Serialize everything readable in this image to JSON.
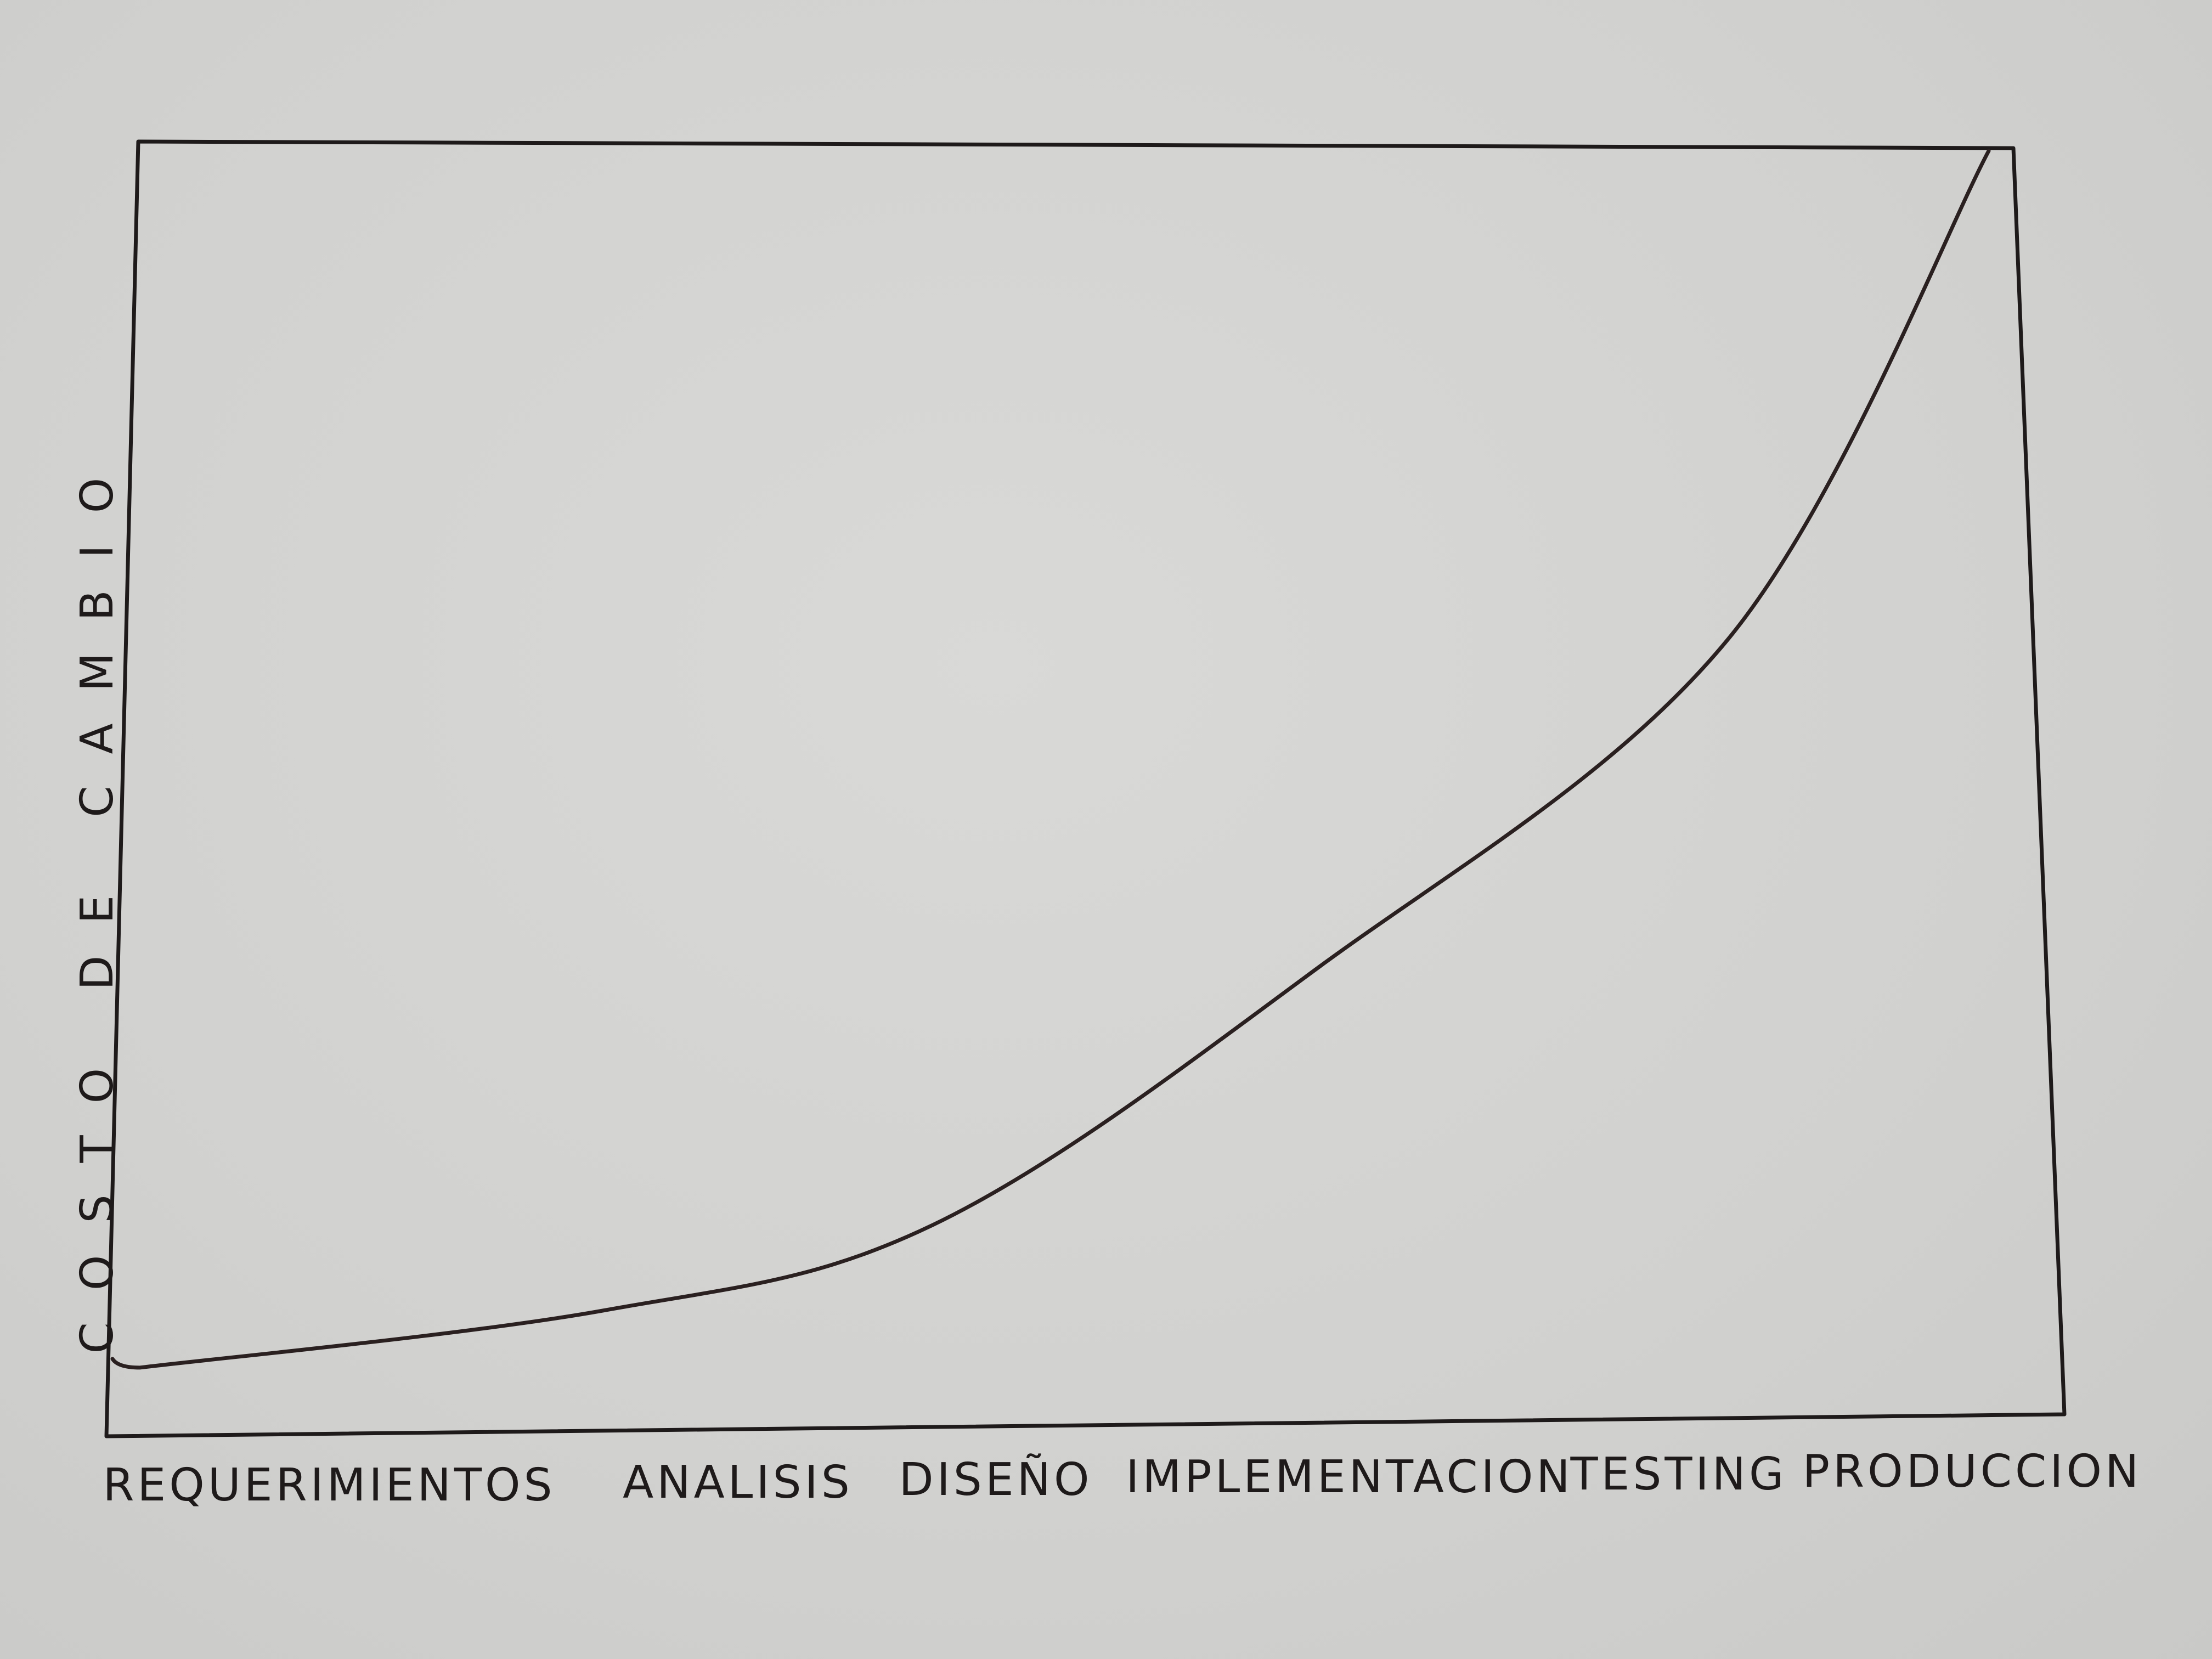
{
  "chart_data": {
    "type": "line",
    "title": "",
    "xlabel": "",
    "ylabel": "COSTO DE CAMBIO",
    "categories": [
      "REQUERIMIENTOS",
      "ANALISIS",
      "DISEÑO",
      "IMPLEMENTACION",
      "TESTING",
      "PRODUCCION"
    ],
    "series": [
      {
        "values": [
          0.5,
          5,
          12,
          33,
          60,
          100
        ]
      }
    ],
    "ylim": [
      0,
      100
    ],
    "grid": false,
    "legend": "none",
    "line_color": "#2a2020",
    "frame_color": "#1e1a1a"
  }
}
